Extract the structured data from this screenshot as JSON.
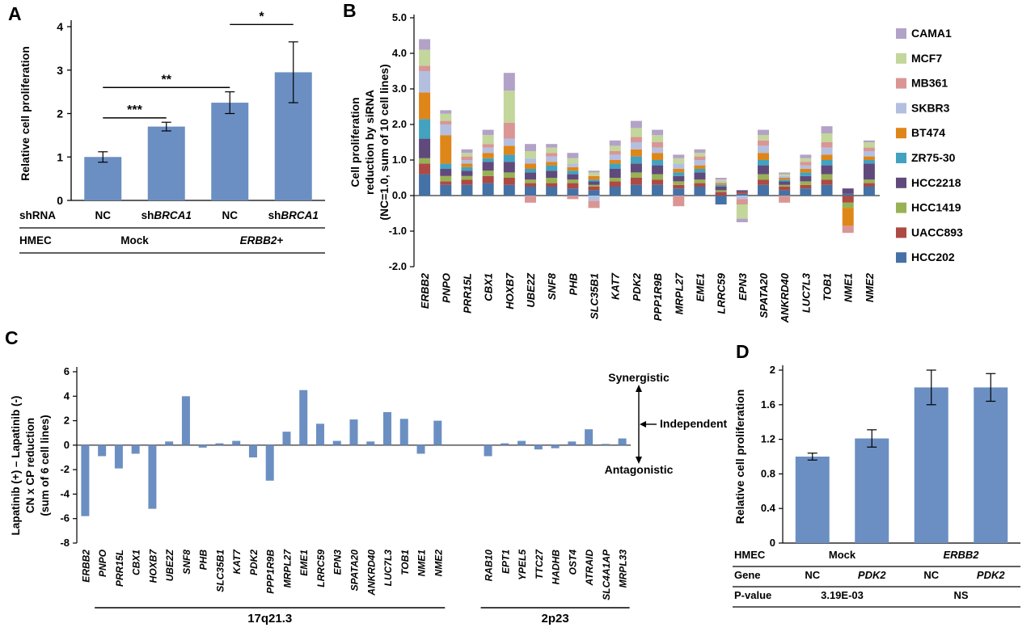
{
  "figure": {
    "background": "#ffffff",
    "panels": [
      {
        "id": "A",
        "label": "A"
      },
      {
        "id": "B",
        "label": "B"
      },
      {
        "id": "C",
        "label": "C"
      },
      {
        "id": "D",
        "label": "D"
      }
    ]
  },
  "colors": {
    "bar_blue": "#6b8fc2",
    "axis": "#000000"
  },
  "chart_data": [
    {
      "panel": "A",
      "type": "bar",
      "ylabel": "Relative cell proliferation",
      "ylim": [
        0,
        4
      ],
      "yticks": [
        "0",
        "1",
        "2",
        "3",
        "4"
      ],
      "categories": [
        "NC",
        "shBRCA1",
        "NC",
        "shBRCA1"
      ],
      "values": [
        1.0,
        1.7,
        2.25,
        2.95
      ],
      "errors": [
        0.12,
        0.1,
        0.25,
        0.7
      ],
      "significance": [
        {
          "from": 0,
          "to": 1,
          "y": 1.9,
          "label": "***"
        },
        {
          "from": 0,
          "to": 2,
          "y": 2.6,
          "label": "**"
        },
        {
          "from": 2,
          "to": 3,
          "y": 4.05,
          "label": "*"
        }
      ],
      "table": {
        "row_headers": [
          "shRNA",
          "HMEC"
        ],
        "rows": [
          [
            {
              "pre": "NC"
            },
            {
              "pre": "sh",
              "it": "BRCA1"
            },
            {
              "pre": "NC"
            },
            {
              "pre": "sh",
              "it": "BRCA1"
            }
          ],
          [
            {
              "pre": "Mock",
              "span": 2
            },
            {
              "it": "ERBB2",
              "post": "+",
              "span": 2
            }
          ]
        ]
      }
    },
    {
      "panel": "B",
      "type": "stacked-bar",
      "ylabel_lines": [
        "Cell proliferation",
        "reduction by siRNA",
        "(NC=1.0, sum of 10 cell lines)"
      ],
      "ylim": [
        -2.0,
        5.0
      ],
      "yticks": [
        "5.0",
        "4.0",
        "3.0",
        "2.0",
        "1.0",
        "0.0",
        "-1.0",
        "-2.0"
      ],
      "genes": [
        "ERBB2",
        "PNPO",
        "PRR15L",
        "CBX1",
        "HOXB7",
        "UBE2Z",
        "SNF8",
        "PHB",
        "SLC35B1",
        "KAT7",
        "PDK2",
        "PPP1R9B",
        "MRPL27",
        "EME1",
        "LRRC59",
        "EPN3",
        "SPATA20",
        "ANKRD40",
        "LUC7L3",
        "TOB1",
        "NME1",
        "NME2"
      ],
      "cell_lines": [
        "HCC202",
        "UACC893",
        "HCC1419",
        "HCC2218",
        "ZR75-30",
        "BT474",
        "SKBR3",
        "MB361",
        "MCF7",
        "CAMA1"
      ],
      "legend_order": [
        "CAMA1",
        "MCF7",
        "MB361",
        "SKBR3",
        "BT474",
        "ZR75-30",
        "HCC2218",
        "HCC1419",
        "UACC893",
        "HCC202"
      ],
      "colors": {
        "HCC202": "#4472a6",
        "UACC893": "#ad4a44",
        "HCC1419": "#97b254",
        "HCC2218": "#604a7b",
        "ZR75-30": "#43a2c0",
        "BT474": "#df8618",
        "SKBR3": "#b4bfe0",
        "MB361": "#d99694",
        "MCF7": "#c3d69b",
        "CAMA1": "#b3a2c7"
      },
      "values": {
        "ERBB2": [
          0.6,
          0.3,
          0.15,
          0.55,
          0.55,
          0.75,
          0.6,
          0.15,
          0.45,
          0.3
        ],
        "PNPO": [
          0.3,
          0.1,
          0.15,
          0.2,
          0.15,
          0.8,
          0.3,
          0.1,
          0.2,
          0.1
        ],
        "PRR15L": [
          0.3,
          0.15,
          0.1,
          0.15,
          0.1,
          0.1,
          0.1,
          0.1,
          0.1,
          0.1
        ],
        "CBX1": [
          0.35,
          0.2,
          0.15,
          0.25,
          0.1,
          0.15,
          0.15,
          0.1,
          0.25,
          0.15
        ],
        "HOXB7": [
          0.3,
          0.2,
          0.15,
          0.3,
          0.2,
          0.25,
          0.2,
          0.45,
          0.9,
          0.5
        ],
        "UBE2Z": [
          0.25,
          0.1,
          0.1,
          0.2,
          0.1,
          0.15,
          0.15,
          -0.2,
          0.2,
          0.2
        ],
        "SNF8": [
          0.25,
          0.1,
          0.15,
          0.2,
          0.15,
          0.1,
          0.15,
          0.1,
          0.15,
          0.1
        ],
        "PHB": [
          0.2,
          0.15,
          0.1,
          0.15,
          0.1,
          0.1,
          0.1,
          -0.1,
          0.15,
          0.15
        ],
        "SLC35B1": [
          0.15,
          0.1,
          0.05,
          0.1,
          0.05,
          0.1,
          -0.15,
          -0.2,
          0.1,
          0.05
        ],
        "KAT7": [
          0.25,
          0.15,
          0.1,
          0.25,
          0.15,
          0.1,
          0.15,
          0.1,
          0.15,
          0.15
        ],
        "PDK2": [
          0.3,
          0.2,
          0.15,
          0.25,
          0.2,
          0.2,
          0.2,
          0.15,
          0.25,
          0.2
        ],
        "PPP1R9B": [
          0.3,
          0.15,
          0.15,
          0.25,
          0.15,
          0.2,
          0.15,
          0.15,
          0.2,
          0.15
        ],
        "MRPL27": [
          0.2,
          0.1,
          0.1,
          0.15,
          0.1,
          0.1,
          0.15,
          -0.3,
          0.15,
          0.1
        ],
        "EME1": [
          0.25,
          0.1,
          0.1,
          0.2,
          0.1,
          0.1,
          0.15,
          0.1,
          0.1,
          0.1
        ],
        "LRRC59": [
          -0.25,
          0.1,
          0.05,
          0.1,
          0.05,
          0.05,
          0.05,
          0.0,
          0.05,
          0.05
        ],
        "EPN3": [
          0.05,
          0.05,
          0.0,
          0.05,
          0.0,
          0.0,
          -0.1,
          -0.15,
          -0.4,
          -0.1
        ],
        "SPATA20": [
          0.3,
          0.15,
          0.15,
          0.25,
          0.15,
          0.2,
          0.2,
          0.15,
          0.15,
          0.15
        ],
        "ANKRD40": [
          0.15,
          0.1,
          0.05,
          0.1,
          0.05,
          0.05,
          0.05,
          -0.2,
          0.05,
          0.05
        ],
        "LUC7L3": [
          0.2,
          0.1,
          0.1,
          0.15,
          0.1,
          0.1,
          0.1,
          0.1,
          0.1,
          0.1
        ],
        "TOB1": [
          0.3,
          0.15,
          0.15,
          0.25,
          0.15,
          0.15,
          0.2,
          0.15,
          0.25,
          0.2
        ],
        "NME1": [
          0.05,
          -0.2,
          -0.15,
          0.15,
          0.0,
          -0.5,
          0.0,
          -0.2,
          0.0,
          0.0
        ],
        "NME2": [
          0.25,
          0.1,
          0.1,
          0.45,
          0.1,
          0.1,
          0.15,
          0.1,
          0.15,
          0.05
        ]
      }
    },
    {
      "panel": "C",
      "type": "bar",
      "ylabel_lines": [
        "Lapatinib (+) – Lapatinib (-)",
        "CN x CP reduction",
        "(sum of 6 cell lines)"
      ],
      "ylim": [
        -8,
        6
      ],
      "yticks": [
        "6",
        "4",
        "2",
        "0",
        "-2",
        "-4",
        "-6",
        "-8"
      ],
      "groups": [
        {
          "label": "17q21.3",
          "underline_start_index": 1,
          "genes": [
            "ERBB2",
            "PNPO",
            "PRR15L",
            "CBX1",
            "HOXB7",
            "UBE2Z",
            "SNF8",
            "PHB",
            "SLC35B1",
            "KAT7",
            "PDK2",
            "PPP1R9B",
            "MRPL27",
            "EME1",
            "LRRC59",
            "EPN3",
            "SPATA20",
            "ANKRD40",
            "LUC7L3",
            "TOB1",
            "NME1",
            "NME2"
          ],
          "values": [
            -5.8,
            -0.9,
            -1.9,
            -0.7,
            -5.2,
            0.3,
            4.0,
            -0.2,
            0.15,
            0.35,
            -1.0,
            -2.9,
            1.1,
            4.5,
            1.75,
            0.35,
            2.1,
            0.3,
            2.7,
            2.15,
            -0.7,
            2.0
          ]
        },
        {
          "label": "2p23",
          "underline_start_index": 0,
          "genes": [
            "RAB10",
            "EPT1",
            "YPEL5",
            "TTC27",
            "HADHB",
            "OST4",
            "ATRAID",
            "SLC4A1AP",
            "MRPL33"
          ],
          "values": [
            -0.9,
            0.15,
            0.35,
            -0.35,
            -0.25,
            0.3,
            1.3,
            0.1,
            0.55
          ]
        }
      ],
      "annotations": {
        "top": "Synergistic",
        "middle": "Independent",
        "bottom": "Antagonistic"
      }
    },
    {
      "panel": "D",
      "type": "bar",
      "ylabel": "Relative cell proliferation",
      "ylim": [
        0,
        2
      ],
      "yticks": [
        "0",
        "0.4",
        "0.8",
        "1.2",
        "1.6",
        "2"
      ],
      "categories": [
        "NC",
        "PDK2",
        "NC",
        "PDK2"
      ],
      "values": [
        1.0,
        1.21,
        1.8,
        1.8
      ],
      "errors": [
        0.04,
        0.1,
        0.2,
        0.16
      ],
      "table": {
        "row_headers": [
          "HMEC",
          "Gene",
          "P-value"
        ],
        "rows": [
          [
            {
              "pre": "Mock",
              "span": 2
            },
            {
              "it": "ERBB2",
              "span": 2
            }
          ],
          [
            {
              "pre": "NC"
            },
            {
              "it": "PDK2"
            },
            {
              "pre": "NC"
            },
            {
              "it": "PDK2"
            }
          ],
          [
            {
              "pre": "3.19E-03",
              "span": 2
            },
            {
              "pre": "NS",
              "span": 2
            }
          ]
        ]
      }
    }
  ]
}
